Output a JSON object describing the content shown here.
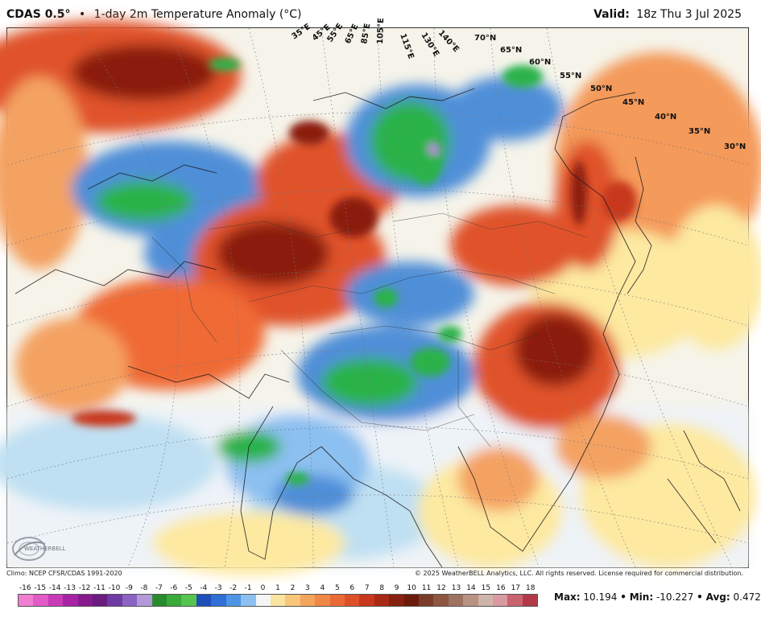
{
  "header": {
    "model": "CDAS 0.5°",
    "separator": "•",
    "product": "1-day 2m Temperature Anomaly (°C)",
    "valid_label": "Valid:",
    "valid_time": "18z Thu 3 Jul 2025"
  },
  "map": {
    "region": "Asia",
    "latitude_labels": [
      "70°N",
      "65°N",
      "60°N",
      "55°N",
      "50°N",
      "45°N",
      "40°N",
      "35°N",
      "30°N"
    ],
    "longitude_labels": [
      "35°E",
      "45°E",
      "55°E",
      "65°E",
      "85°E",
      "105°E",
      "115°E",
      "130°E",
      "140°E"
    ],
    "colors": {
      "strong_warm": "#8b1a0e",
      "warm": "#e0522a",
      "mild_warm": "#f4a262",
      "slight_warm": "#fde9a0",
      "neutral": "#f5f7fb",
      "slight_cool": "#bfe0f2",
      "cool": "#4f8fd8",
      "strong_cool": "#2bb24a",
      "extreme_cool": "#b48ad8"
    }
  },
  "footer": {
    "climo": "Climo: NCEP CFSR/CDAS 1991-2020",
    "copyright": "© 2025 WeatherBELL Analytics, LLC. All rights reserved. License required for commercial distribution."
  },
  "colorbar": {
    "ticks": [
      "-16",
      "-15",
      "-14",
      "-13",
      "-12",
      "-11",
      "-10",
      "-9",
      "-8",
      "-7",
      "-6",
      "-5",
      "-4",
      "-3",
      "-2",
      "-1",
      "0",
      "1",
      "2",
      "3",
      "4",
      "5",
      "6",
      "7",
      "8",
      "9",
      "10",
      "11",
      "12",
      "13",
      "14",
      "15",
      "16",
      "17",
      "18"
    ],
    "colors": [
      "#f07fd0",
      "#e25bc6",
      "#c93bb6",
      "#a823a4",
      "#861a8e",
      "#6a1c7f",
      "#6e3aa3",
      "#8b63c2",
      "#b29ad8",
      "#2a8a2e",
      "#3aaa3a",
      "#56c44e",
      "#1f4fb8",
      "#2f6fd6",
      "#4f95e6",
      "#8cc0f0",
      "#f5f5f5",
      "#fbe3a0",
      "#f8c57a",
      "#f4a55c",
      "#ef8747",
      "#e96a36",
      "#dd4f27",
      "#c7381d",
      "#a82a15",
      "#86200f",
      "#6c1a0d",
      "#7a3b2a",
      "#8c5640",
      "#9e7260",
      "#b89383",
      "#cfb4aa",
      "#d99aa2",
      "#c9636f",
      "#b23a48"
    ]
  },
  "stats": {
    "max_label": "Max:",
    "max_value": "10.194",
    "min_label": "Min:",
    "min_value": "-10.227",
    "avg_label": "Avg:",
    "avg_value": "0.472",
    "sep": "•"
  }
}
